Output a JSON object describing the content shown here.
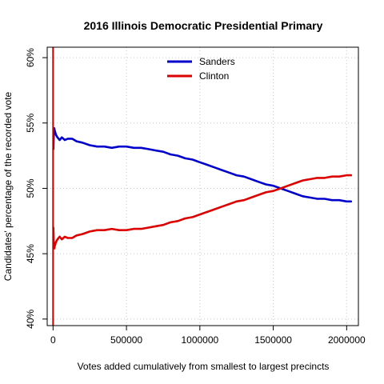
{
  "chart_data": {
    "type": "line",
    "title": "2016 Illinois Democratic Presidential Primary",
    "xlabel": "Votes added cumulatively from smallest to largest precincts",
    "ylabel": "Candidates' percentage of the recorded vote",
    "xlim": [
      -40000,
      2080000
    ],
    "ylim": [
      39.5,
      60.8
    ],
    "x_ticks": [
      0,
      500000,
      1000000,
      1500000,
      2000000
    ],
    "x_tick_labels": [
      "0",
      "500000",
      "1000000",
      "1500000",
      "2000000"
    ],
    "y_ticks": [
      40,
      45,
      50,
      55,
      60
    ],
    "y_tick_labels": [
      "40%",
      "45%",
      "50%",
      "55%",
      "60%"
    ],
    "grid": true,
    "legend_position": "top-center",
    "vertical_marker_x": 0,
    "colors": {
      "Sanders": "#0000cc",
      "Clinton": "#dd0000",
      "marker": "#cc0000"
    },
    "series": [
      {
        "name": "Sanders",
        "x": [
          2000,
          5000,
          8000,
          12000,
          20000,
          30000,
          45000,
          60000,
          80000,
          100000,
          130000,
          160000,
          200000,
          250000,
          300000,
          350000,
          400000,
          450000,
          500000,
          550000,
          600000,
          650000,
          700000,
          750000,
          800000,
          850000,
          900000,
          950000,
          1000000,
          1050000,
          1100000,
          1150000,
          1200000,
          1250000,
          1300000,
          1350000,
          1400000,
          1450000,
          1500000,
          1550000,
          1600000,
          1650000,
          1700000,
          1750000,
          1800000,
          1850000,
          1900000,
          1950000,
          2000000,
          2030000
        ],
        "y": [
          53.0,
          54.3,
          54.6,
          54.4,
          54.1,
          53.9,
          53.7,
          53.9,
          53.7,
          53.8,
          53.8,
          53.6,
          53.5,
          53.3,
          53.2,
          53.2,
          53.1,
          53.2,
          53.2,
          53.1,
          53.1,
          53.0,
          52.9,
          52.8,
          52.6,
          52.5,
          52.3,
          52.2,
          52.0,
          51.8,
          51.6,
          51.4,
          51.2,
          51.0,
          50.9,
          50.7,
          50.5,
          50.3,
          50.2,
          50.0,
          49.8,
          49.6,
          49.4,
          49.3,
          49.2,
          49.2,
          49.1,
          49.1,
          49.0,
          49.0
        ]
      },
      {
        "name": "Clinton",
        "x": [
          2000,
          5000,
          8000,
          12000,
          20000,
          30000,
          45000,
          60000,
          80000,
          100000,
          130000,
          160000,
          200000,
          250000,
          300000,
          350000,
          400000,
          450000,
          500000,
          550000,
          600000,
          650000,
          700000,
          750000,
          800000,
          850000,
          900000,
          950000,
          1000000,
          1050000,
          1100000,
          1150000,
          1200000,
          1250000,
          1300000,
          1350000,
          1400000,
          1450000,
          1500000,
          1550000,
          1600000,
          1650000,
          1700000,
          1750000,
          1800000,
          1850000,
          1900000,
          1950000,
          2000000,
          2030000
        ],
        "y": [
          47.0,
          45.6,
          45.4,
          45.6,
          45.9,
          46.1,
          46.3,
          46.1,
          46.3,
          46.2,
          46.2,
          46.4,
          46.5,
          46.7,
          46.8,
          46.8,
          46.9,
          46.8,
          46.8,
          46.9,
          46.9,
          47.0,
          47.1,
          47.2,
          47.4,
          47.5,
          47.7,
          47.8,
          48.0,
          48.2,
          48.4,
          48.6,
          48.8,
          49.0,
          49.1,
          49.3,
          49.5,
          49.7,
          49.8,
          50.0,
          50.2,
          50.4,
          50.6,
          50.7,
          50.8,
          50.8,
          50.9,
          50.9,
          51.0,
          51.0
        ]
      }
    ]
  }
}
